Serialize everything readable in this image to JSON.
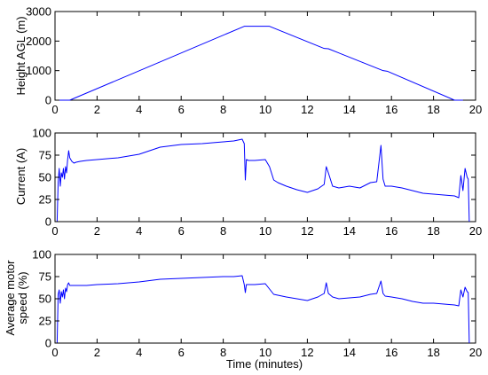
{
  "figure": {
    "xlabel": "Time (minutes)"
  },
  "chart_data": [
    {
      "type": "line",
      "title": "",
      "xlabel": "",
      "ylabel": "Height AGL (m)",
      "xlim": [
        0,
        20
      ],
      "ylim": [
        0,
        3000
      ],
      "xticks": [
        0,
        2,
        4,
        6,
        8,
        10,
        12,
        14,
        16,
        18,
        20
      ],
      "yticks": [
        0,
        1000,
        2000,
        3000
      ],
      "grid": false,
      "series": [
        {
          "color": "#0000ff",
          "x": [
            0.0,
            0.5,
            0.7,
            9.0,
            10.2,
            12.8,
            13.0,
            15.6,
            15.8,
            19.0,
            19.4
          ],
          "y": [
            0,
            0,
            0,
            2500,
            2500,
            1750,
            1740,
            1000,
            980,
            0,
            0
          ]
        }
      ]
    },
    {
      "type": "line",
      "title": "",
      "xlabel": "",
      "ylabel": "Current (A)",
      "xlim": [
        0,
        20
      ],
      "ylim": [
        0,
        100
      ],
      "xticks": [
        0,
        2,
        4,
        6,
        8,
        10,
        12,
        14,
        16,
        18,
        20
      ],
      "yticks": [
        0,
        25,
        50,
        75,
        100
      ],
      "grid": false,
      "series": [
        {
          "color": "#0000ff",
          "x": [
            0.1,
            0.15,
            0.2,
            0.25,
            0.3,
            0.35,
            0.4,
            0.45,
            0.5,
            0.55,
            0.6,
            0.65,
            0.7,
            0.8,
            0.9,
            1.0,
            1.2,
            1.5,
            2.0,
            3.0,
            4.0,
            4.5,
            5.0,
            6.0,
            7.0,
            8.0,
            8.5,
            8.9,
            9.0,
            9.05,
            9.1,
            9.2,
            9.5,
            10.0,
            10.2,
            10.4,
            10.6,
            11.0,
            11.5,
            12.0,
            12.5,
            12.8,
            12.9,
            13.0,
            13.2,
            13.5,
            14.0,
            14.5,
            15.0,
            15.3,
            15.5,
            15.6,
            15.7,
            16.0,
            16.5,
            17.0,
            17.5,
            18.0,
            18.5,
            19.0,
            19.2,
            19.3,
            19.4,
            19.5,
            19.6,
            19.65,
            19.7
          ],
          "y": [
            0,
            45,
            60,
            40,
            55,
            50,
            60,
            48,
            62,
            55,
            70,
            80,
            72,
            68,
            66,
            67,
            68,
            69,
            70,
            72,
            76,
            80,
            84,
            87,
            88,
            90,
            91,
            93,
            88,
            47,
            70,
            69,
            69,
            70,
            62,
            47,
            44,
            40,
            36,
            33,
            37,
            42,
            62,
            55,
            40,
            38,
            40,
            38,
            44,
            45,
            86,
            48,
            40,
            40,
            38,
            35,
            32,
            31,
            30,
            29,
            27,
            52,
            35,
            60,
            50,
            48,
            0
          ]
        }
      ]
    },
    {
      "type": "line",
      "title": "",
      "xlabel": "Time (minutes)",
      "ylabel": "Average motor speed (%)",
      "ylabel_lines": [
        "Average motor",
        "speed (%)"
      ],
      "xlim": [
        0,
        20
      ],
      "ylim": [
        0,
        100
      ],
      "xticks": [
        0,
        2,
        4,
        6,
        8,
        10,
        12,
        14,
        16,
        18,
        20
      ],
      "yticks": [
        0,
        25,
        50,
        75,
        100
      ],
      "grid": false,
      "series": [
        {
          "color": "#0000ff",
          "x": [
            0.1,
            0.15,
            0.2,
            0.25,
            0.3,
            0.35,
            0.4,
            0.45,
            0.5,
            0.55,
            0.6,
            0.65,
            0.7,
            0.8,
            1.0,
            1.5,
            2.0,
            3.0,
            4.0,
            5.0,
            6.0,
            7.0,
            8.0,
            8.5,
            8.9,
            9.0,
            9.05,
            9.1,
            9.5,
            10.0,
            10.2,
            10.4,
            10.6,
            11.0,
            11.5,
            12.0,
            12.5,
            12.8,
            12.9,
            13.0,
            13.2,
            13.5,
            14.0,
            14.5,
            15.0,
            15.3,
            15.5,
            15.6,
            15.7,
            16.0,
            16.5,
            17.0,
            17.5,
            18.0,
            18.5,
            19.0,
            19.2,
            19.3,
            19.4,
            19.5,
            19.6,
            19.65,
            19.7
          ],
          "y": [
            0,
            55,
            60,
            45,
            58,
            52,
            60,
            50,
            62,
            58,
            66,
            68,
            65,
            65,
            65,
            65,
            66,
            67,
            69,
            72,
            73,
            74,
            75,
            75,
            76,
            66,
            57,
            66,
            66,
            67,
            61,
            55,
            54,
            52,
            50,
            48,
            52,
            56,
            68,
            56,
            52,
            50,
            51,
            52,
            55,
            56,
            70,
            56,
            53,
            52,
            50,
            47,
            45,
            45,
            44,
            43,
            42,
            60,
            52,
            63,
            58,
            57,
            0
          ]
        }
      ]
    }
  ]
}
